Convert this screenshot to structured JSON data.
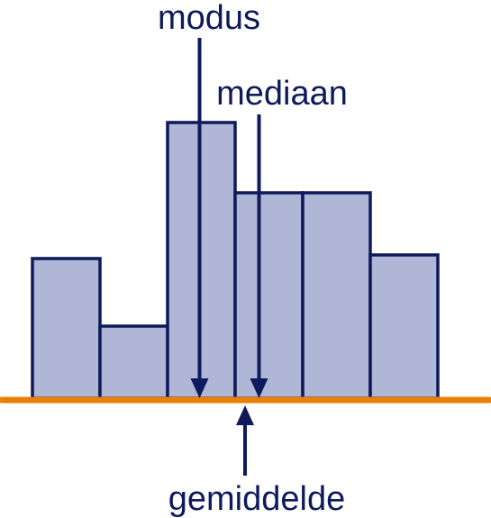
{
  "labels": {
    "mode": "modus",
    "median": "mediaan",
    "mean": "gemiddelde"
  },
  "chart_data": {
    "type": "bar",
    "values": [
      155,
      80,
      306,
      228,
      228,
      159
    ],
    "markers": {
      "mode_bin": 2.5,
      "median_bin": 3.5,
      "mean_bin": 3.0
    }
  },
  "colors": {
    "bar_fill": "#b0b6d6",
    "bar_stroke": "#0d1a5c",
    "baseline": "#e8800a",
    "arrow": "#0d1a5c",
    "text": "#0d1a5c"
  }
}
